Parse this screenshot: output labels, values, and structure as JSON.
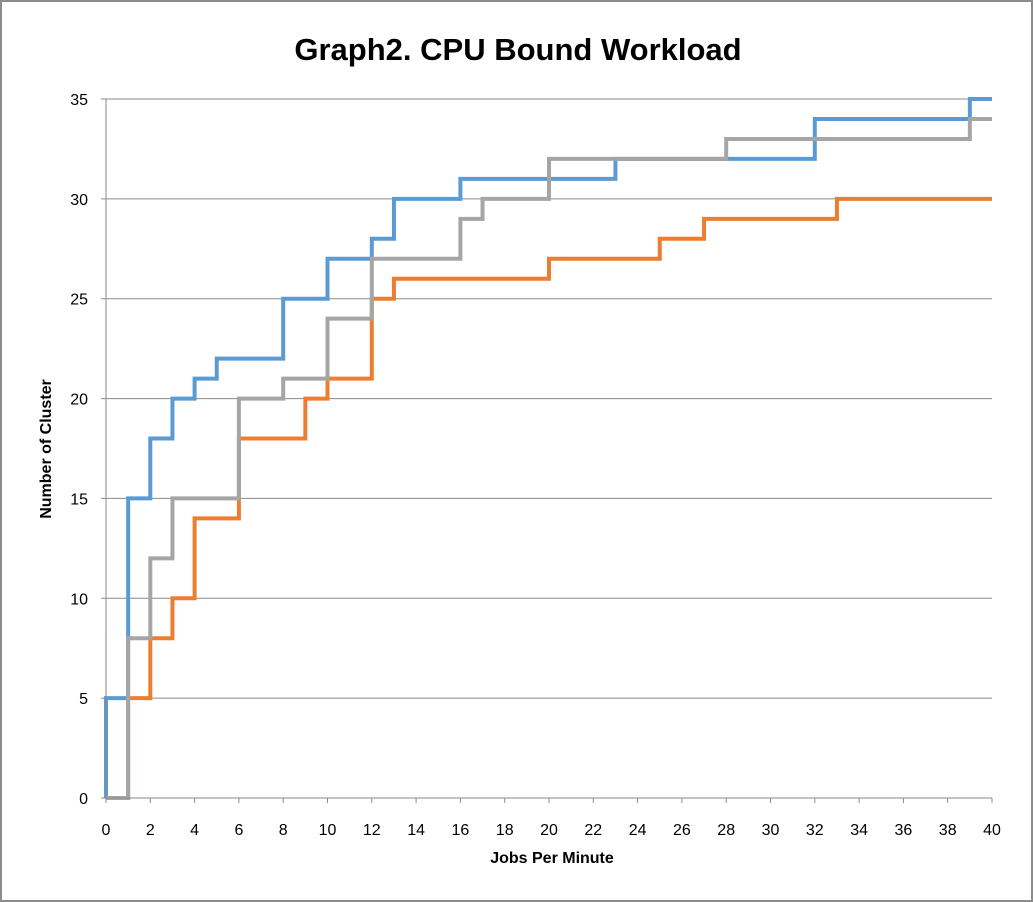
{
  "chart_data": {
    "type": "line",
    "title": "Graph2. CPU Bound Workload",
    "xlabel": "Jobs Per Minute",
    "ylabel": "Number of Cluster",
    "xlim": [
      0,
      40
    ],
    "ylim": [
      0,
      35
    ],
    "x_ticks": [
      0,
      2,
      4,
      6,
      8,
      10,
      12,
      14,
      16,
      18,
      20,
      22,
      24,
      26,
      28,
      30,
      32,
      34,
      36,
      38,
      40
    ],
    "y_ticks": [
      0,
      5,
      10,
      15,
      20,
      25,
      30,
      35
    ],
    "grid": "horizontal",
    "legend": "none",
    "step": "post",
    "series": [
      {
        "color": "#5B9BD5",
        "x": [
          0,
          1,
          2,
          3,
          4,
          5,
          8,
          10,
          12,
          13,
          16,
          23,
          32,
          39,
          40
        ],
        "y": [
          5,
          15,
          18,
          20,
          21,
          22,
          25,
          27,
          28,
          30,
          31,
          32,
          34,
          35,
          35
        ]
      },
      {
        "color": "#ED7D31",
        "x": [
          0,
          1,
          2,
          3,
          4,
          6,
          9,
          10,
          12,
          13,
          20,
          25,
          27,
          33,
          40
        ],
        "y": [
          0,
          5,
          8,
          10,
          14,
          18,
          20,
          21,
          25,
          26,
          27,
          28,
          29,
          30,
          30
        ]
      },
      {
        "color": "#A5A5A5",
        "x": [
          0,
          1,
          2,
          3,
          6,
          8,
          10,
          12,
          16,
          17,
          20,
          28,
          39,
          40
        ],
        "y": [
          0,
          8,
          12,
          15,
          20,
          21,
          24,
          27,
          29,
          30,
          32,
          33,
          34,
          34
        ]
      }
    ]
  }
}
